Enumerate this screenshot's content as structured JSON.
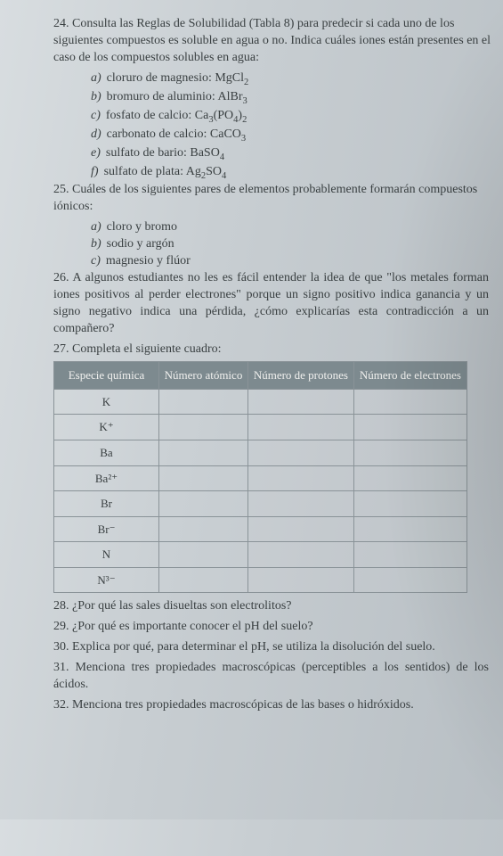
{
  "q24": {
    "num": "24.",
    "text": "Consulta las Reglas de Solubilidad (Tabla 8) para predecir si cada uno de los siguientes compuestos es soluble en agua o no. Indica cuáles iones están presentes en el caso de los compuestos solubles en agua:",
    "opts": [
      {
        "l": "a)",
        "t": "cloruro de magnesio: MgCl",
        "sub": "2"
      },
      {
        "l": "b)",
        "t": "bromuro de aluminio: AlBr",
        "sub": "3"
      },
      {
        "l": "c)",
        "t": "fosfato de calcio: Ca",
        "sub": "3",
        "t2": "(PO",
        "sub2": "4",
        "t3": ")",
        "sub3": "2"
      },
      {
        "l": "d)",
        "t": "carbonato de calcio: CaCO",
        "sub": "3"
      },
      {
        "l": "e)",
        "t": "sulfato de bario: BaSO",
        "sub": "4"
      },
      {
        "l": "f)",
        "t": "sulfato de plata: Ag",
        "sub": "2",
        "t2": "SO",
        "sub2": "4"
      }
    ]
  },
  "q25": {
    "num": "25.",
    "text": "Cuáles de los siguientes pares de elementos probablemente formarán compuestos iónicos:",
    "opts": [
      {
        "l": "a)",
        "t": "cloro y bromo"
      },
      {
        "l": "b)",
        "t": "sodio y argón"
      },
      {
        "l": "c)",
        "t": "magnesio y flúor"
      }
    ]
  },
  "q26": {
    "num": "26.",
    "text": "A algunos estudiantes no les es fácil entender la idea de que \"los metales forman iones positivos al perder electrones\" porque un signo positivo indica ganancia y un signo negativo indica una pérdida, ¿cómo explicarías esta contradicción a un compañero?"
  },
  "q27": {
    "num": "27.",
    "text": "Completa el siguiente cuadro:",
    "headers": [
      "Especie química",
      "Número atómico",
      "Número de protones",
      "Número de electrones"
    ],
    "rows": [
      "K",
      "K⁺",
      "Ba",
      "Ba²⁺",
      "Br",
      "Br⁻",
      "N",
      "N³⁻"
    ]
  },
  "q28": {
    "num": "28.",
    "text": "¿Por qué las sales disueltas son electrolitos?"
  },
  "q29": {
    "num": "29.",
    "text": "¿Por qué es importante conocer el pH del suelo?"
  },
  "q30": {
    "num": "30.",
    "text": "Explica por qué, para determinar el pH, se utiliza la disolución del suelo."
  },
  "q31": {
    "num": "31.",
    "text": "Menciona tres propiedades macroscópicas (perceptibles a los sentidos) de los ácidos."
  },
  "q32": {
    "num": "32.",
    "text": "Menciona tres propiedades macroscópicas de las bases o hidróxidos."
  }
}
